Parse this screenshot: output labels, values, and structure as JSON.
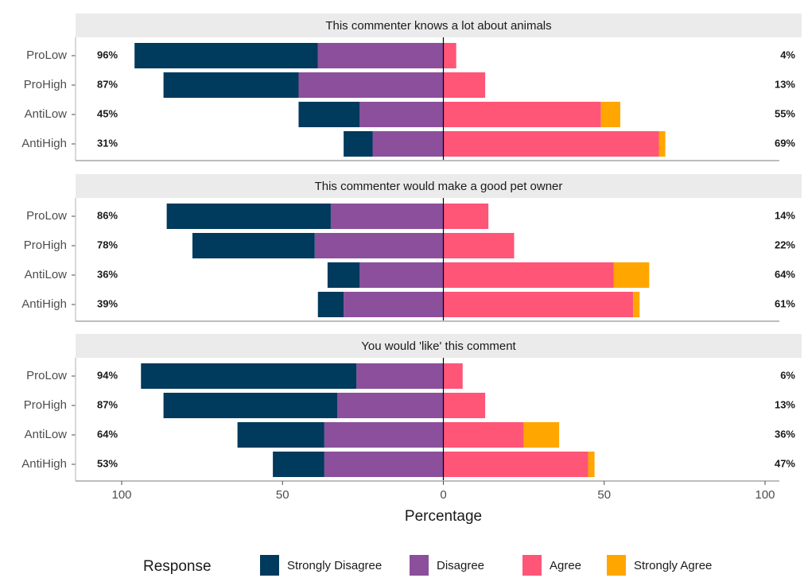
{
  "chart_data": {
    "type": "bar",
    "subtype": "diverging-stacked-horizontal",
    "xlabel": "Percentage",
    "x_ticks": [
      {
        "value": -100,
        "label": "100"
      },
      {
        "value": -50,
        "label": "50"
      },
      {
        "value": 0,
        "label": "0"
      },
      {
        "value": 50,
        "label": "50"
      },
      {
        "value": 100,
        "label": "100"
      }
    ],
    "xlim": [
      -100,
      100
    ],
    "grid": false,
    "categories": [
      "ProLow",
      "ProHigh",
      "AntiLow",
      "AntiHigh"
    ],
    "legend": {
      "title": "Response",
      "position": "bottom",
      "entries": [
        {
          "key": "strongly_disagree",
          "label": "Strongly Disagree",
          "color": "#003a5c"
        },
        {
          "key": "disagree",
          "label": "Disagree",
          "color": "#8b4f9b"
        },
        {
          "key": "agree",
          "label": "Agree",
          "color": "#ff5577"
        },
        {
          "key": "strongly_agree",
          "label": "Strongly Agree",
          "color": "#ffa600"
        }
      ]
    },
    "panels": [
      {
        "title": "This commenter knows a lot about animals",
        "rows": [
          {
            "category": "ProLow",
            "strongly_disagree": 57,
            "disagree": 39,
            "agree": 4,
            "strongly_agree": 0,
            "neg_label": "96%",
            "pos_label": "4%"
          },
          {
            "category": "ProHigh",
            "strongly_disagree": 42,
            "disagree": 45,
            "agree": 13,
            "strongly_agree": 0,
            "neg_label": "87%",
            "pos_label": "13%"
          },
          {
            "category": "AntiLow",
            "strongly_disagree": 19,
            "disagree": 26,
            "agree": 49,
            "strongly_agree": 6,
            "neg_label": "45%",
            "pos_label": "55%"
          },
          {
            "category": "AntiHigh",
            "strongly_disagree": 9,
            "disagree": 22,
            "agree": 67,
            "strongly_agree": 2,
            "neg_label": "31%",
            "pos_label": "69%"
          }
        ]
      },
      {
        "title": "This commenter would make a good pet owner",
        "rows": [
          {
            "category": "ProLow",
            "strongly_disagree": 51,
            "disagree": 35,
            "agree": 14,
            "strongly_agree": 0,
            "neg_label": "86%",
            "pos_label": "14%"
          },
          {
            "category": "ProHigh",
            "strongly_disagree": 38,
            "disagree": 40,
            "agree": 22,
            "strongly_agree": 0,
            "neg_label": "78%",
            "pos_label": "22%"
          },
          {
            "category": "AntiLow",
            "strongly_disagree": 10,
            "disagree": 26,
            "agree": 53,
            "strongly_agree": 11,
            "neg_label": "36%",
            "pos_label": "64%"
          },
          {
            "category": "AntiHigh",
            "strongly_disagree": 8,
            "disagree": 31,
            "agree": 59,
            "strongly_agree": 2,
            "neg_label": "39%",
            "pos_label": "61%"
          }
        ]
      },
      {
        "title": "You would 'like' this comment",
        "rows": [
          {
            "category": "ProLow",
            "strongly_disagree": 67,
            "disagree": 27,
            "agree": 6,
            "strongly_agree": 0,
            "neg_label": "94%",
            "pos_label": "6%"
          },
          {
            "category": "ProHigh",
            "strongly_disagree": 54,
            "disagree": 33,
            "agree": 13,
            "strongly_agree": 0,
            "neg_label": "87%",
            "pos_label": "13%"
          },
          {
            "category": "AntiLow",
            "strongly_disagree": 27,
            "disagree": 37,
            "agree": 25,
            "strongly_agree": 11,
            "neg_label": "64%",
            "pos_label": "36%"
          },
          {
            "category": "AntiHigh",
            "strongly_disagree": 16,
            "disagree": 37,
            "agree": 45,
            "strongly_agree": 2,
            "neg_label": "53%",
            "pos_label": "47%"
          }
        ]
      }
    ]
  }
}
